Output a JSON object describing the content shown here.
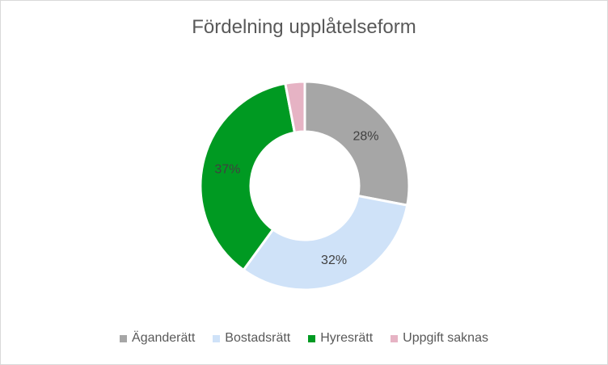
{
  "chart_data": {
    "type": "pie",
    "variant": "donut",
    "title": "Fördelning upplåtelseform",
    "categories": [
      "Äganderätt",
      "Bostadsrätt",
      "Hyresrätt",
      "Uppgift saknas"
    ],
    "values": [
      28,
      32,
      37,
      3
    ],
    "value_labels": [
      "28%",
      "32%",
      "37%",
      ""
    ],
    "colors": [
      "#a6a6a6",
      "#cfe2f8",
      "#009a22",
      "#e6b3c4"
    ],
    "legend_position": "bottom"
  }
}
